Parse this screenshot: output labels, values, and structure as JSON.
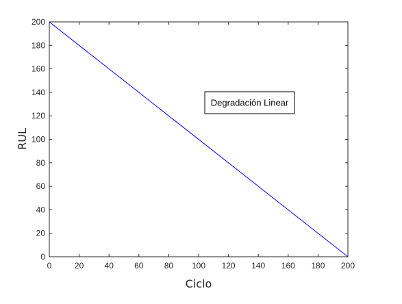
{
  "chart_data": {
    "type": "line",
    "xlabel": "Ciclo",
    "ylabel": "RUL",
    "xlim": [
      0,
      200
    ],
    "ylim": [
      0,
      200
    ],
    "xticks": [
      0,
      20,
      40,
      60,
      80,
      100,
      120,
      140,
      160,
      180,
      200
    ],
    "yticks": [
      0,
      20,
      40,
      60,
      80,
      100,
      120,
      140,
      160,
      180,
      200
    ],
    "grid": false,
    "series": [
      {
        "x": [
          0,
          200
        ],
        "y": [
          200,
          0
        ],
        "color": "#0000ff"
      }
    ],
    "annotations": [
      {
        "text": "Degradación Linear"
      }
    ]
  }
}
